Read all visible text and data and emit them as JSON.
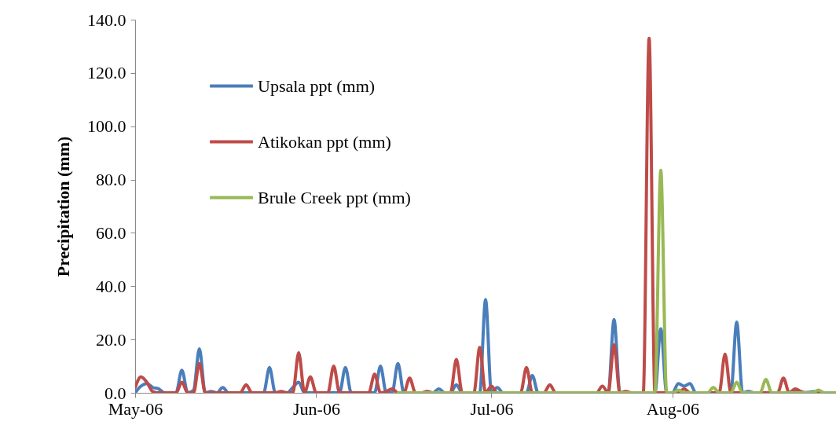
{
  "chart_data": {
    "type": "line",
    "ylabel": "Precipitation (mm)",
    "xlim": [
      "2006-05-01",
      "2006-08-29"
    ],
    "xticks": [
      {
        "value": "2006-05-01",
        "label": "May-06"
      },
      {
        "value": "2006-06-01",
        "label": "Jun-06"
      },
      {
        "value": "2006-07-01",
        "label": "Jul-06"
      },
      {
        "value": "2006-08-01",
        "label": "Aug-06"
      }
    ],
    "ylim": [
      0,
      140
    ],
    "yticks": [
      {
        "value": 0,
        "label": "0.0"
      },
      {
        "value": 20,
        "label": "20.0"
      },
      {
        "value": 40,
        "label": "40.0"
      },
      {
        "value": 60,
        "label": "60.0"
      },
      {
        "value": 80,
        "label": "80.0"
      },
      {
        "value": 100,
        "label": "100.0"
      },
      {
        "value": 120,
        "label": "120.0"
      },
      {
        "value": 140,
        "label": "140.0"
      }
    ],
    "grid": false,
    "legend": "top left",
    "line_style": "solid",
    "series": [
      {
        "name": "Upsala ppt (mm)",
        "color": "#4a7ebb",
        "x": [
          "2006-05-01",
          "2006-05-02",
          "2006-05-03",
          "2006-05-04",
          "2006-05-05",
          "2006-05-06",
          "2006-05-08",
          "2006-05-09",
          "2006-05-10",
          "2006-05-11",
          "2006-05-12",
          "2006-05-13",
          "2006-05-14",
          "2006-05-15",
          "2006-05-16",
          "2006-05-17",
          "2006-05-23",
          "2006-05-24",
          "2006-05-25",
          "2006-05-27",
          "2006-05-28",
          "2006-05-29",
          "2006-05-30",
          "2006-06-05",
          "2006-06-06",
          "2006-06-07",
          "2006-06-11",
          "2006-06-12",
          "2006-06-13",
          "2006-06-14",
          "2006-06-15",
          "2006-06-16",
          "2006-06-21",
          "2006-06-22",
          "2006-06-23",
          "2006-06-24",
          "2006-06-25",
          "2006-06-26",
          "2006-06-29",
          "2006-06-30",
          "2006-07-01",
          "2006-07-02",
          "2006-07-03",
          "2006-07-07",
          "2006-07-08",
          "2006-07-09",
          "2006-07-21",
          "2006-07-22",
          "2006-07-23",
          "2006-07-29",
          "2006-07-30",
          "2006-07-31",
          "2006-08-01",
          "2006-08-02",
          "2006-08-03",
          "2006-08-04",
          "2006-08-05",
          "2006-08-11",
          "2006-08-12",
          "2006-08-13",
          "2006-08-14",
          "2006-08-15",
          "2006-08-21",
          "2006-08-22",
          "2006-08-23",
          "2006-08-26",
          "2006-08-27",
          "2006-08-29"
        ],
        "values": [
          0,
          2.5,
          3.5,
          2,
          1.5,
          0,
          0,
          8.5,
          0,
          1,
          16.5,
          0,
          0.5,
          0,
          2,
          0,
          0,
          9.5,
          0,
          0,
          2,
          4,
          0,
          0,
          9.5,
          0,
          0,
          10,
          0,
          0,
          11,
          0,
          0,
          1.5,
          0,
          0,
          3,
          0,
          0,
          35,
          0,
          2,
          0,
          0,
          6.5,
          0,
          0,
          27.5,
          0,
          0,
          24,
          0,
          0,
          3.5,
          2.5,
          3.5,
          0,
          0,
          26.5,
          0,
          0.5,
          0,
          0,
          1,
          0,
          0.5,
          0,
          0
        ]
      },
      {
        "name": "Atikokan ppt (mm)",
        "color": "#be4b48",
        "x": [
          "2006-05-01",
          "2006-05-02",
          "2006-05-03",
          "2006-05-04",
          "2006-05-05",
          "2006-05-08",
          "2006-05-09",
          "2006-05-10",
          "2006-05-11",
          "2006-05-12",
          "2006-05-13",
          "2006-05-19",
          "2006-05-20",
          "2006-05-21",
          "2006-05-25",
          "2006-05-26",
          "2006-05-27",
          "2006-05-28",
          "2006-05-29",
          "2006-05-30",
          "2006-05-31",
          "2006-06-01",
          "2006-06-03",
          "2006-06-04",
          "2006-06-05",
          "2006-06-10",
          "2006-06-11",
          "2006-06-12",
          "2006-06-13",
          "2006-06-14",
          "2006-06-15",
          "2006-06-16",
          "2006-06-17",
          "2006-06-18",
          "2006-06-19",
          "2006-06-20",
          "2006-06-21",
          "2006-06-24",
          "2006-06-25",
          "2006-06-26",
          "2006-06-28",
          "2006-06-29",
          "2006-06-30",
          "2006-07-01",
          "2006-07-02",
          "2006-07-06",
          "2006-07-07",
          "2006-07-08",
          "2006-07-10",
          "2006-07-11",
          "2006-07-12",
          "2006-07-19",
          "2006-07-20",
          "2006-07-21",
          "2006-07-22",
          "2006-07-23",
          "2006-07-24",
          "2006-07-25",
          "2006-07-27",
          "2006-07-28",
          "2006-07-29",
          "2006-08-02",
          "2006-08-03",
          "2006-08-04",
          "2006-08-09",
          "2006-08-10",
          "2006-08-11",
          "2006-08-19",
          "2006-08-20",
          "2006-08-21",
          "2006-08-22",
          "2006-08-23",
          "2006-08-24",
          "2006-08-29"
        ],
        "values": [
          2,
          6,
          4,
          0.5,
          0,
          0,
          4,
          0,
          0,
          11,
          0,
          0,
          3,
          0,
          0,
          0.5,
          0,
          0,
          15,
          0,
          6,
          0,
          0,
          10,
          0,
          0,
          7,
          0,
          0.5,
          1.5,
          0,
          0,
          5.5,
          0,
          0,
          0.5,
          0,
          0,
          12.5,
          0,
          0,
          17,
          0,
          2.5,
          0,
          0,
          9.5,
          0,
          0,
          3,
          0,
          0,
          2.5,
          0,
          18,
          0,
          0.5,
          0,
          0,
          133,
          0,
          0,
          1.5,
          0,
          0,
          14.5,
          0,
          0,
          5.5,
          0,
          1.5,
          0.5,
          0,
          0
        ]
      },
      {
        "name": "Brule Creek ppt (mm)",
        "color": "#98b954",
        "x": [
          "2006-06-15",
          "2006-07-29",
          "2006-07-30",
          "2006-07-31",
          "2006-08-01",
          "2006-08-02",
          "2006-08-03",
          "2006-08-07",
          "2006-08-08",
          "2006-08-09",
          "2006-08-11",
          "2006-08-12",
          "2006-08-13",
          "2006-08-16",
          "2006-08-17",
          "2006-08-18",
          "2006-08-25",
          "2006-08-26",
          "2006-08-27",
          "2006-08-29"
        ],
        "values": [
          0,
          0,
          83.5,
          0,
          0,
          1,
          0,
          0,
          2,
          0,
          0,
          4,
          0,
          0,
          5,
          0,
          0,
          1,
          0,
          0
        ]
      }
    ]
  }
}
